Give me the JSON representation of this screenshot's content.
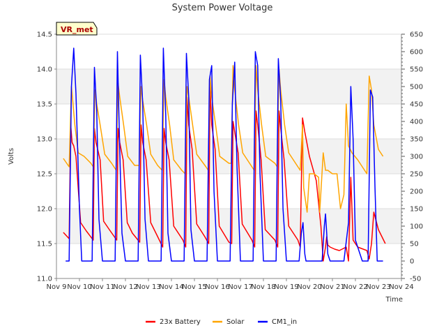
{
  "chart_data": {
    "type": "line",
    "title": "System Power Voltage",
    "xlabel": "Time",
    "ylabel": "Volts",
    "badge": "VR_met",
    "x_ticks": [
      "Nov 9",
      "Nov 10",
      "Nov 11",
      "Nov 12",
      "Nov 13",
      "Nov 14",
      "Nov 15",
      "Nov 16",
      "Nov 17",
      "Nov 18",
      "Nov 19",
      "Nov 20",
      "Nov 21",
      "Nov 22",
      "Nov 23",
      "Nov 24"
    ],
    "xlim": [
      9,
      24
    ],
    "ylim": [
      11.0,
      14.5
    ],
    "y_ticks": [
      "11.0",
      "11.5",
      "12.0",
      "12.5",
      "13.0",
      "13.5",
      "14.0",
      "14.5"
    ],
    "y2lim": [
      -50,
      650
    ],
    "y2_ticks": [
      "-50",
      "0",
      "50",
      "100",
      "150",
      "200",
      "250",
      "300",
      "350",
      "400",
      "450",
      "500",
      "550",
      "600",
      "650"
    ],
    "grid": true,
    "legend_position": "bottom",
    "series": [
      {
        "name": "23x Battery",
        "axis": "left",
        "color": "#ff0000",
        "x": [
          9.3,
          9.55,
          9.62,
          9.68,
          9.75,
          9.85,
          10.05,
          10.3,
          10.6,
          10.65,
          10.72,
          10.9,
          11.05,
          11.3,
          11.62,
          11.68,
          11.75,
          11.9,
          12.08,
          12.3,
          12.62,
          12.68,
          12.75,
          12.9,
          13.1,
          13.4,
          13.62,
          13.68,
          13.75,
          13.9,
          14.1,
          14.5,
          14.62,
          14.68,
          14.75,
          14.9,
          15.1,
          15.45,
          15.62,
          15.68,
          15.75,
          15.9,
          16.08,
          16.5,
          16.62,
          16.68,
          16.75,
          16.9,
          17.08,
          17.5,
          17.62,
          17.68,
          17.75,
          17.9,
          18.08,
          18.5,
          18.62,
          18.68,
          18.75,
          18.9,
          19.1,
          19.5,
          19.6,
          19.7,
          19.8,
          20.0,
          20.3,
          20.5,
          20.6,
          20.7,
          20.75,
          20.8,
          20.9,
          21.1,
          21.3,
          21.6,
          21.7,
          21.8,
          21.9,
          22.1,
          22.5,
          22.6,
          22.7,
          22.8,
          23.0,
          23.3
        ],
        "values": [
          11.66,
          11.57,
          13.2,
          12.95,
          12.9,
          12.75,
          11.8,
          11.68,
          11.55,
          13.15,
          12.95,
          12.7,
          11.82,
          11.7,
          11.55,
          13.15,
          12.95,
          12.7,
          11.8,
          11.65,
          11.52,
          13.2,
          12.95,
          12.7,
          11.8,
          11.6,
          11.45,
          13.15,
          12.95,
          12.7,
          11.75,
          11.55,
          11.45,
          13.6,
          13.2,
          12.85,
          11.78,
          11.6,
          11.5,
          13.75,
          13.2,
          12.85,
          11.75,
          11.52,
          11.5,
          13.25,
          13.1,
          12.8,
          11.78,
          11.55,
          11.45,
          13.4,
          13.2,
          12.7,
          11.7,
          11.55,
          11.45,
          13.4,
          13.15,
          12.7,
          11.75,
          11.55,
          11.45,
          13.3,
          13.1,
          12.75,
          12.4,
          11.75,
          11.25,
          11.45,
          11.6,
          11.48,
          11.45,
          11.42,
          11.4,
          11.45,
          11.25,
          12.45,
          11.55,
          11.45,
          11.4,
          11.28,
          11.5,
          11.95,
          11.7,
          11.5
        ]
      },
      {
        "name": "Solar",
        "axis": "left",
        "color": "#ffa500",
        "x": [
          9.3,
          9.55,
          9.65,
          9.72,
          9.8,
          9.95,
          10.2,
          10.5,
          10.6,
          10.68,
          10.75,
          10.9,
          11.1,
          11.4,
          11.6,
          11.68,
          11.75,
          11.92,
          12.1,
          12.4,
          12.6,
          12.68,
          12.75,
          12.92,
          13.1,
          13.4,
          13.6,
          13.68,
          13.75,
          13.92,
          14.1,
          14.45,
          14.6,
          14.68,
          14.75,
          14.92,
          15.1,
          15.5,
          15.6,
          15.68,
          15.75,
          15.92,
          16.1,
          16.5,
          16.6,
          16.68,
          16.75,
          16.92,
          17.1,
          17.5,
          17.6,
          17.68,
          17.75,
          17.92,
          18.1,
          18.5,
          18.6,
          18.68,
          18.75,
          18.92,
          19.1,
          19.5,
          19.6,
          19.7,
          19.75,
          19.9,
          20.0,
          20.2,
          20.4,
          20.45,
          20.6,
          20.7,
          20.8,
          21.0,
          21.2,
          21.35,
          21.5,
          21.6,
          21.7,
          21.85,
          22.1,
          22.3,
          22.5,
          22.6,
          22.7,
          22.8,
          23.0,
          23.2
        ],
        "values": [
          12.72,
          12.6,
          13.75,
          13.5,
          13.2,
          12.8,
          12.75,
          12.65,
          12.6,
          13.7,
          13.5,
          13.2,
          12.78,
          12.65,
          12.55,
          13.8,
          13.6,
          13.2,
          12.75,
          12.62,
          12.62,
          13.75,
          13.55,
          13.2,
          12.78,
          12.62,
          12.55,
          13.85,
          13.6,
          13.2,
          12.7,
          12.55,
          12.5,
          13.75,
          13.6,
          13.2,
          12.78,
          12.6,
          12.55,
          13.9,
          13.6,
          13.2,
          12.75,
          12.65,
          12.65,
          14.05,
          13.7,
          13.2,
          12.8,
          12.6,
          12.55,
          14.05,
          13.7,
          13.2,
          12.75,
          12.65,
          12.6,
          14.0,
          13.7,
          13.2,
          12.8,
          12.6,
          12.55,
          13.2,
          12.3,
          11.95,
          12.5,
          12.5,
          12.45,
          11.95,
          12.8,
          12.55,
          12.55,
          12.5,
          12.5,
          12.0,
          12.2,
          13.5,
          12.9,
          12.8,
          12.7,
          12.6,
          12.5,
          13.9,
          13.7,
          13.2,
          12.85,
          12.75
        ]
      },
      {
        "name": "CM1_in",
        "axis": "right",
        "color": "#0000ff",
        "x": [
          9.4,
          9.55,
          9.65,
          9.75,
          9.85,
          10.0,
          10.1,
          10.3,
          10.55,
          10.65,
          10.75,
          10.85,
          11.0,
          11.1,
          11.3,
          11.55,
          11.65,
          11.75,
          11.85,
          12.0,
          12.1,
          12.3,
          12.55,
          12.65,
          12.75,
          12.85,
          13.0,
          13.1,
          13.3,
          13.55,
          13.65,
          13.75,
          13.85,
          14.0,
          14.1,
          14.3,
          14.55,
          14.65,
          14.75,
          14.85,
          15.0,
          15.1,
          15.3,
          15.55,
          15.65,
          15.75,
          15.85,
          16.0,
          16.1,
          16.3,
          16.55,
          16.65,
          16.75,
          16.85,
          17.0,
          17.1,
          17.3,
          17.55,
          17.65,
          17.75,
          17.85,
          18.0,
          18.1,
          18.3,
          18.55,
          18.65,
          18.75,
          18.85,
          19.0,
          19.1,
          19.3,
          19.55,
          19.65,
          19.72,
          19.8,
          19.85,
          20.0,
          20.3,
          20.55,
          20.65,
          20.7,
          20.75,
          20.8,
          20.9,
          21.2,
          21.5,
          21.7,
          21.8,
          21.9,
          22.0,
          22.3,
          22.55,
          22.65,
          22.75,
          22.85,
          22.95,
          23.2
        ],
        "values": [
          0,
          0,
          500,
          610,
          480,
          150,
          0,
          0,
          0,
          555,
          430,
          120,
          0,
          0,
          0,
          0,
          600,
          320,
          80,
          0,
          0,
          0,
          0,
          590,
          450,
          120,
          0,
          0,
          0,
          0,
          610,
          420,
          80,
          0,
          0,
          0,
          0,
          595,
          470,
          90,
          0,
          0,
          0,
          0,
          520,
          560,
          200,
          0,
          0,
          0,
          0,
          450,
          570,
          270,
          0,
          0,
          0,
          0,
          600,
          560,
          250,
          0,
          0,
          0,
          0,
          580,
          460,
          150,
          0,
          0,
          0,
          0,
          80,
          110,
          20,
          0,
          0,
          0,
          0,
          100,
          135,
          80,
          20,
          0,
          0,
          0,
          110,
          500,
          350,
          60,
          0,
          0,
          490,
          470,
          210,
          0,
          0
        ]
      }
    ]
  }
}
